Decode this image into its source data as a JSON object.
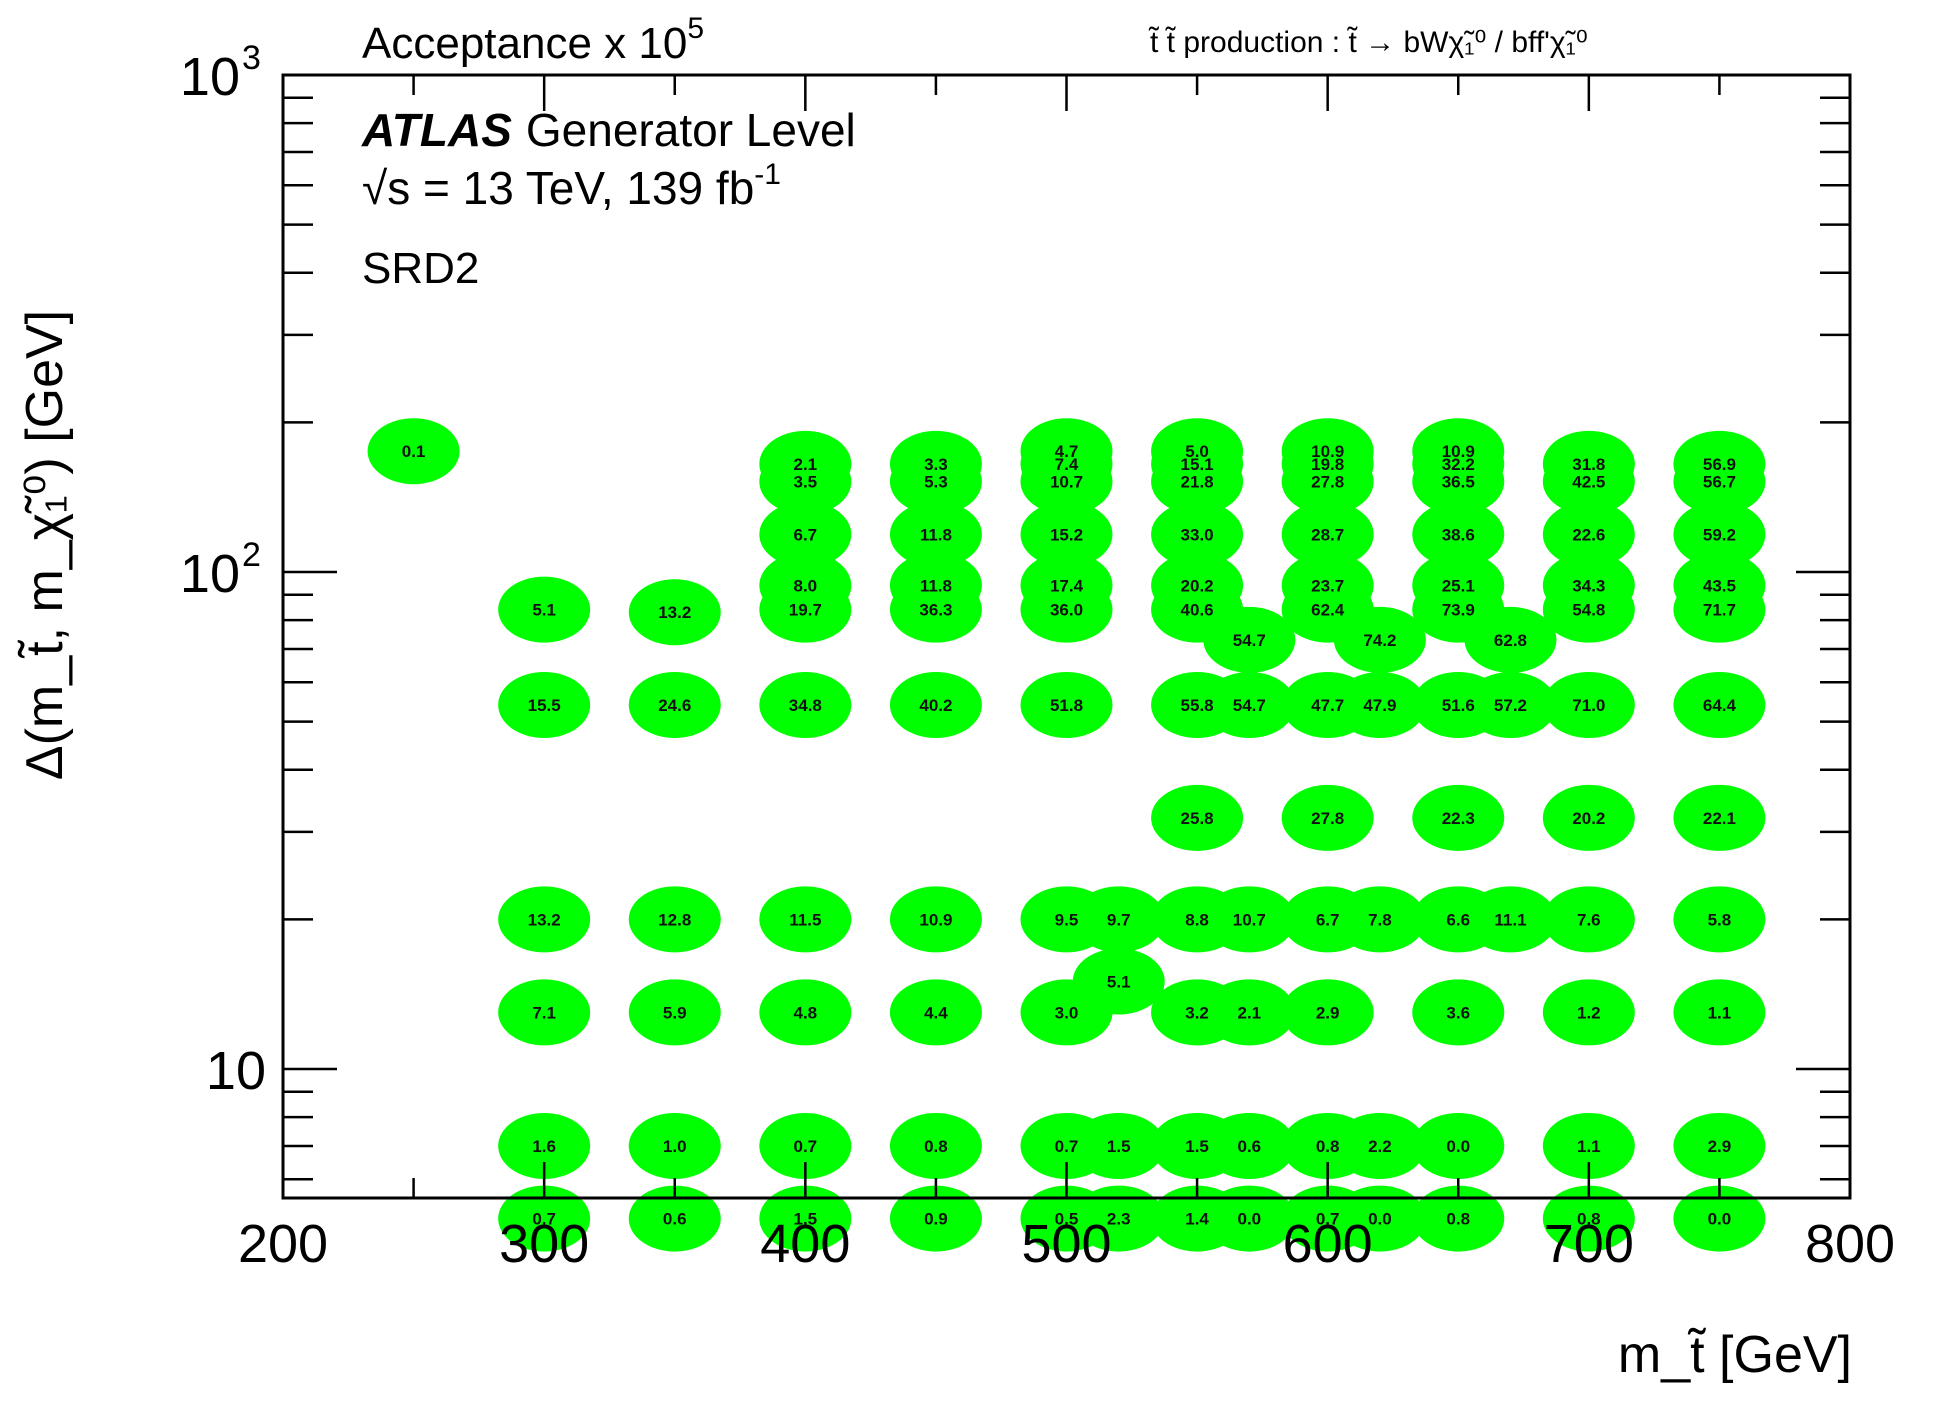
{
  "header": {
    "z_title_base": "Acceptance x 10",
    "z_title_exp": "5",
    "process": "t̃ t̃ production : t̃ → bWχ̃₁⁰ / bff'χ̃₁⁰"
  },
  "legend": {
    "atlas": "ATLAS",
    "generator": "Generator Level",
    "energy": "√s = 13 TeV, 139 fb",
    "energy_exp": "-1",
    "region": "SRD2"
  },
  "colors": {
    "marker": "#00ff00",
    "axis": "#000000"
  },
  "chart_data": {
    "type": "scatter",
    "title": "Acceptance x 10^5",
    "xlabel": "m_t̃ [GeV]",
    "ylabel": "Δ(m_t̃, m_χ̃₁⁰) [GeV]",
    "xlim": [
      200,
      800
    ],
    "ylim": [
      5.5,
      1000
    ],
    "yscale": "log",
    "x_ticks": [
      "200",
      "300",
      "400",
      "500",
      "600",
      "700",
      "800"
    ],
    "y_ticks": [
      {
        "value": 10,
        "label": "10"
      },
      {
        "value": 100,
        "label": "10",
        "exp": "2"
      },
      {
        "value": 1000,
        "label": "10",
        "exp": "3"
      }
    ],
    "points": [
      {
        "x": 250,
        "y": 175,
        "v": "0.1"
      },
      {
        "x": 300,
        "y": 84,
        "v": "5.1"
      },
      {
        "x": 300,
        "y": 54,
        "v": "15.5"
      },
      {
        "x": 300,
        "y": 20,
        "v": "13.2"
      },
      {
        "x": 300,
        "y": 13,
        "v": "7.1"
      },
      {
        "x": 300,
        "y": 7,
        "v": "1.6"
      },
      {
        "x": 300,
        "y": 5,
        "v": "0.7"
      },
      {
        "x": 350,
        "y": 83,
        "v": "13.2"
      },
      {
        "x": 350,
        "y": 54,
        "v": "24.6"
      },
      {
        "x": 350,
        "y": 20,
        "v": "12.8"
      },
      {
        "x": 350,
        "y": 13,
        "v": "5.9"
      },
      {
        "x": 350,
        "y": 7,
        "v": "1.0"
      },
      {
        "x": 350,
        "y": 5,
        "v": "0.6"
      },
      {
        "x": 400,
        "y": 165,
        "v": "2.1"
      },
      {
        "x": 400,
        "y": 152,
        "v": "3.5"
      },
      {
        "x": 400,
        "y": 119,
        "v": "6.7"
      },
      {
        "x": 400,
        "y": 94,
        "v": "8.0"
      },
      {
        "x": 400,
        "y": 84,
        "v": "19.7"
      },
      {
        "x": 400,
        "y": 54,
        "v": "34.8"
      },
      {
        "x": 400,
        "y": 20,
        "v": "11.5"
      },
      {
        "x": 400,
        "y": 13,
        "v": "4.8"
      },
      {
        "x": 400,
        "y": 7,
        "v": "0.7"
      },
      {
        "x": 400,
        "y": 5,
        "v": "1.5"
      },
      {
        "x": 450,
        "y": 165,
        "v": "3.3"
      },
      {
        "x": 450,
        "y": 152,
        "v": "5.3"
      },
      {
        "x": 450,
        "y": 119,
        "v": "11.8"
      },
      {
        "x": 450,
        "y": 94,
        "v": "11.8"
      },
      {
        "x": 450,
        "y": 84,
        "v": "36.3"
      },
      {
        "x": 450,
        "y": 54,
        "v": "40.2"
      },
      {
        "x": 450,
        "y": 20,
        "v": "10.9"
      },
      {
        "x": 450,
        "y": 13,
        "v": "4.4"
      },
      {
        "x": 450,
        "y": 7,
        "v": "0.8"
      },
      {
        "x": 450,
        "y": 5,
        "v": "0.9"
      },
      {
        "x": 500,
        "y": 175,
        "v": "4.7"
      },
      {
        "x": 500,
        "y": 165,
        "v": "7.4"
      },
      {
        "x": 500,
        "y": 152,
        "v": "10.7"
      },
      {
        "x": 500,
        "y": 119,
        "v": "15.2"
      },
      {
        "x": 500,
        "y": 94,
        "v": "17.4"
      },
      {
        "x": 500,
        "y": 84,
        "v": "36.0"
      },
      {
        "x": 500,
        "y": 54,
        "v": "51.8"
      },
      {
        "x": 500,
        "y": 20,
        "v": "9.5"
      },
      {
        "x": 500,
        "y": 13,
        "v": "3.0"
      },
      {
        "x": 500,
        "y": 7,
        "v": "0.7"
      },
      {
        "x": 500,
        "y": 5,
        "v": "0.5"
      },
      {
        "x": 520,
        "y": 20,
        "v": "9.7"
      },
      {
        "x": 520,
        "y": 15,
        "v": "5.1"
      },
      {
        "x": 520,
        "y": 7,
        "v": "1.5"
      },
      {
        "x": 520,
        "y": 5,
        "v": "2.3"
      },
      {
        "x": 550,
        "y": 175,
        "v": "5.0"
      },
      {
        "x": 550,
        "y": 165,
        "v": "15.1"
      },
      {
        "x": 550,
        "y": 152,
        "v": "21.8"
      },
      {
        "x": 550,
        "y": 119,
        "v": "33.0"
      },
      {
        "x": 550,
        "y": 94,
        "v": "20.2"
      },
      {
        "x": 550,
        "y": 84,
        "v": "40.6"
      },
      {
        "x": 550,
        "y": 54,
        "v": "55.8"
      },
      {
        "x": 550,
        "y": 32,
        "v": "25.8"
      },
      {
        "x": 550,
        "y": 20,
        "v": "8.8"
      },
      {
        "x": 550,
        "y": 13,
        "v": "3.2"
      },
      {
        "x": 550,
        "y": 7,
        "v": "1.5"
      },
      {
        "x": 550,
        "y": 5,
        "v": "1.4"
      },
      {
        "x": 570,
        "y": 73,
        "v": "54.7"
      },
      {
        "x": 570,
        "y": 54,
        "v": "54.7"
      },
      {
        "x": 570,
        "y": 20,
        "v": "10.7"
      },
      {
        "x": 570,
        "y": 13,
        "v": "2.1"
      },
      {
        "x": 570,
        "y": 7,
        "v": "0.6"
      },
      {
        "x": 570,
        "y": 5,
        "v": "0.0"
      },
      {
        "x": 600,
        "y": 175,
        "v": "10.9"
      },
      {
        "x": 600,
        "y": 165,
        "v": "19.8"
      },
      {
        "x": 600,
        "y": 152,
        "v": "27.8"
      },
      {
        "x": 600,
        "y": 119,
        "v": "28.7"
      },
      {
        "x": 600,
        "y": 94,
        "v": "23.7"
      },
      {
        "x": 600,
        "y": 84,
        "v": "62.4"
      },
      {
        "x": 600,
        "y": 54,
        "v": "47.7"
      },
      {
        "x": 600,
        "y": 32,
        "v": "27.8"
      },
      {
        "x": 600,
        "y": 20,
        "v": "6.7"
      },
      {
        "x": 600,
        "y": 13,
        "v": "2.9"
      },
      {
        "x": 600,
        "y": 7,
        "v": "0.8"
      },
      {
        "x": 600,
        "y": 5,
        "v": "0.7"
      },
      {
        "x": 620,
        "y": 73,
        "v": "74.2"
      },
      {
        "x": 620,
        "y": 54,
        "v": "47.9"
      },
      {
        "x": 620,
        "y": 20,
        "v": "7.8"
      },
      {
        "x": 620,
        "y": 7,
        "v": "2.2"
      },
      {
        "x": 620,
        "y": 5,
        "v": "0.0"
      },
      {
        "x": 650,
        "y": 175,
        "v": "10.9"
      },
      {
        "x": 650,
        "y": 165,
        "v": "32.2"
      },
      {
        "x": 650,
        "y": 152,
        "v": "36.5"
      },
      {
        "x": 650,
        "y": 119,
        "v": "38.6"
      },
      {
        "x": 650,
        "y": 94,
        "v": "25.1"
      },
      {
        "x": 650,
        "y": 84,
        "v": "73.9"
      },
      {
        "x": 650,
        "y": 54,
        "v": "51.6"
      },
      {
        "x": 650,
        "y": 32,
        "v": "22.3"
      },
      {
        "x": 650,
        "y": 20,
        "v": "6.6"
      },
      {
        "x": 650,
        "y": 13,
        "v": "3.6"
      },
      {
        "x": 650,
        "y": 7,
        "v": "0.0"
      },
      {
        "x": 650,
        "y": 5,
        "v": "0.8"
      },
      {
        "x": 670,
        "y": 73,
        "v": "62.8"
      },
      {
        "x": 670,
        "y": 54,
        "v": "57.2"
      },
      {
        "x": 670,
        "y": 20,
        "v": "11.1"
      },
      {
        "x": 700,
        "y": 165,
        "v": "31.8"
      },
      {
        "x": 700,
        "y": 152,
        "v": "42.5"
      },
      {
        "x": 700,
        "y": 119,
        "v": "22.6"
      },
      {
        "x": 700,
        "y": 94,
        "v": "34.3"
      },
      {
        "x": 700,
        "y": 84,
        "v": "54.8"
      },
      {
        "x": 700,
        "y": 54,
        "v": "71.0"
      },
      {
        "x": 700,
        "y": 32,
        "v": "20.2"
      },
      {
        "x": 700,
        "y": 20,
        "v": "7.6"
      },
      {
        "x": 700,
        "y": 13,
        "v": "1.2"
      },
      {
        "x": 700,
        "y": 7,
        "v": "1.1"
      },
      {
        "x": 700,
        "y": 5,
        "v": "0.8"
      },
      {
        "x": 750,
        "y": 165,
        "v": "56.9"
      },
      {
        "x": 750,
        "y": 152,
        "v": "56.7"
      },
      {
        "x": 750,
        "y": 119,
        "v": "59.2"
      },
      {
        "x": 750,
        "y": 94,
        "v": "43.5"
      },
      {
        "x": 750,
        "y": 84,
        "v": "71.7"
      },
      {
        "x": 750,
        "y": 54,
        "v": "64.4"
      },
      {
        "x": 750,
        "y": 32,
        "v": "22.1"
      },
      {
        "x": 750,
        "y": 20,
        "v": "5.8"
      },
      {
        "x": 750,
        "y": 13,
        "v": "1.1"
      },
      {
        "x": 750,
        "y": 7,
        "v": "2.9"
      },
      {
        "x": 750,
        "y": 5,
        "v": "0.0"
      }
    ]
  }
}
